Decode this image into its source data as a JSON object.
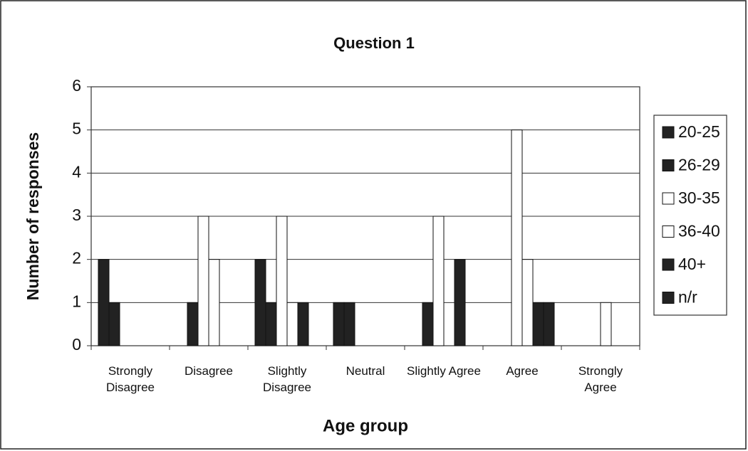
{
  "chart_data": {
    "type": "bar",
    "title": "Question 1",
    "x_label": "Age group",
    "y_label": "Number of responses",
    "categories": [
      "Strongly Disagree",
      "Disagree",
      "Slightly Disagree",
      "Neutral",
      "Slightly Agree",
      "Agree",
      "Strongly Agree"
    ],
    "series": [
      {
        "name": "20-25",
        "color": "#222222",
        "values": [
          2,
          0,
          2,
          1,
          0,
          0,
          0
        ]
      },
      {
        "name": "26-29",
        "color": "#222222",
        "values": [
          1,
          1,
          1,
          1,
          1,
          0,
          0
        ]
      },
      {
        "name": "30-35",
        "color": "#ffffff",
        "values": [
          0,
          3,
          3,
          0,
          3,
          5,
          0
        ]
      },
      {
        "name": "36-40",
        "color": "#ffffff",
        "values": [
          0,
          2,
          1,
          0,
          0,
          2,
          1
        ]
      },
      {
        "name": "40+",
        "color": "#222222",
        "values": [
          0,
          0,
          1,
          0,
          2,
          1,
          0
        ]
      },
      {
        "name": "n/r",
        "color": "#222222",
        "values": [
          0,
          0,
          0,
          0,
          0,
          1,
          0
        ]
      }
    ],
    "ylim": [
      0,
      6
    ],
    "yticks": [
      0,
      1,
      2,
      3,
      4,
      5,
      6
    ],
    "grid": true,
    "legend": "right"
  }
}
